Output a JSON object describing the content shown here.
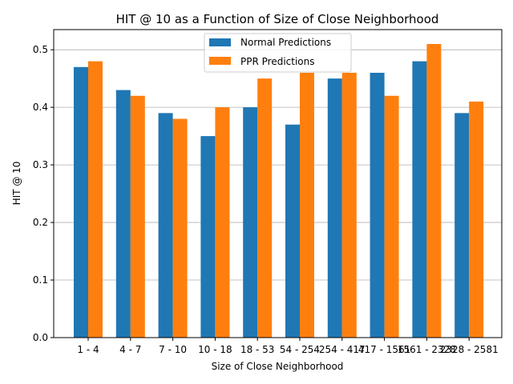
{
  "chart_data": {
    "type": "bar",
    "title": "HIT @ 10 as a Function of Size of Close Neighborhood",
    "xlabel": "Size of Close Neighborhood",
    "ylabel": "HIT @ 10",
    "categories": [
      "1 - 4",
      "4 - 7",
      "7 - 10",
      "10 - 18",
      "18 - 53",
      "54 - 254",
      "254 - 417",
      "417 - 1561",
      "1561 - 2328",
      "2328 - 2581"
    ],
    "series": [
      {
        "name": "Normal Predictions",
        "color": "#1f77b4",
        "values": [
          0.47,
          0.43,
          0.39,
          0.35,
          0.4,
          0.37,
          0.45,
          0.46,
          0.48,
          0.39
        ]
      },
      {
        "name": "PPR Predictions",
        "color": "#ff7f0e",
        "values": [
          0.48,
          0.42,
          0.38,
          0.4,
          0.45,
          0.46,
          0.46,
          0.42,
          0.51,
          0.41
        ]
      }
    ],
    "ylim": [
      0,
      0.535
    ],
    "yticks": [
      "0.0",
      "0.1",
      "0.2",
      "0.3",
      "0.4",
      "0.5"
    ],
    "grid": "horizontal",
    "legend": "top-center"
  }
}
